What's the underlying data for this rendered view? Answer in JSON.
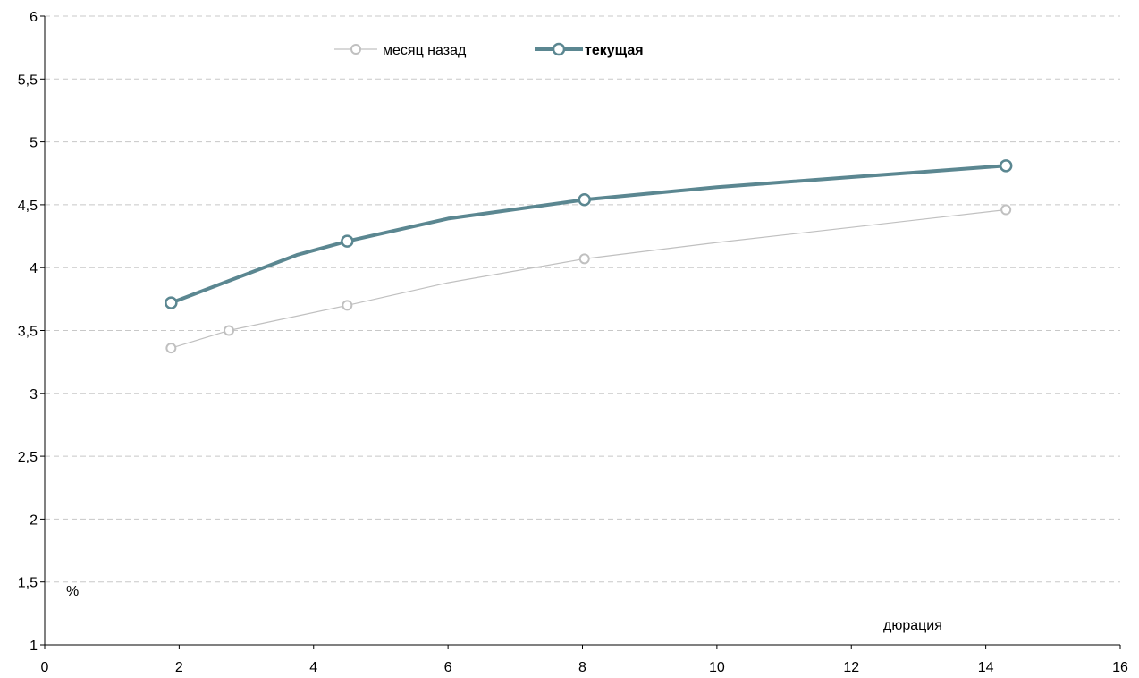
{
  "chart_data": {
    "type": "line",
    "xlabel": "дюрация",
    "ylabel": "%",
    "xlim": [
      0,
      16
    ],
    "ylim": [
      1,
      6
    ],
    "x_ticks": [
      0,
      2,
      4,
      6,
      8,
      10,
      12,
      14,
      16
    ],
    "y_ticks": [
      1,
      1.5,
      2,
      2.5,
      3,
      3.5,
      4,
      4.5,
      5,
      5.5,
      6
    ],
    "x_tick_labels": [
      "0",
      "2",
      "4",
      "6",
      "8",
      "10",
      "12",
      "14",
      "16"
    ],
    "y_tick_labels": [
      "1",
      "1,5",
      "2",
      "2,5",
      "3",
      "3,5",
      "4",
      "4,5",
      "5",
      "5,5",
      "6"
    ],
    "grid": {
      "horizontal": true,
      "vertical": false,
      "style": "dashed"
    },
    "legend": {
      "position": "top-center"
    },
    "series": [
      {
        "name": "месяц назад",
        "color": "#c0c0c0",
        "curve": [
          [
            1.88,
            3.36
          ],
          [
            2.74,
            3.5
          ],
          [
            4.5,
            3.7
          ],
          [
            6.0,
            3.88
          ],
          [
            8.03,
            4.07
          ],
          [
            10.0,
            4.2
          ],
          [
            12.0,
            4.32
          ],
          [
            14.3,
            4.46
          ]
        ],
        "points": [
          [
            1.88,
            3.36
          ],
          [
            2.74,
            3.5
          ],
          [
            4.5,
            3.7
          ],
          [
            8.03,
            4.07
          ],
          [
            14.3,
            4.46
          ]
        ]
      },
      {
        "name": "текущая",
        "color": "#5b8791",
        "curve": [
          [
            1.88,
            3.72
          ],
          [
            3.75,
            4.1
          ],
          [
            4.5,
            4.21
          ],
          [
            6.0,
            4.39
          ],
          [
            8.03,
            4.54
          ],
          [
            10.0,
            4.64
          ],
          [
            12.0,
            4.72
          ],
          [
            14.3,
            4.81
          ]
        ],
        "points": [
          [
            1.88,
            3.72
          ],
          [
            4.5,
            4.21
          ],
          [
            8.03,
            4.54
          ],
          [
            14.3,
            4.81
          ]
        ]
      }
    ]
  }
}
